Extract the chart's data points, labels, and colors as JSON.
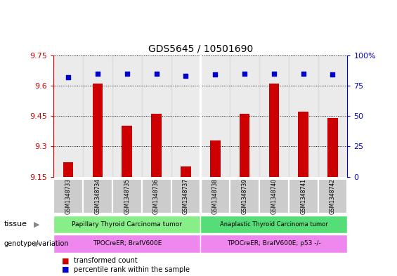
{
  "title": "GDS5645 / 10501690",
  "samples": [
    "GSM1348733",
    "GSM1348734",
    "GSM1348735",
    "GSM1348736",
    "GSM1348737",
    "GSM1348738",
    "GSM1348739",
    "GSM1348740",
    "GSM1348741",
    "GSM1348742"
  ],
  "bar_values": [
    9.22,
    9.61,
    9.4,
    9.46,
    9.2,
    9.33,
    9.46,
    9.61,
    9.47,
    9.44
  ],
  "dot_values": [
    82,
    85,
    85,
    85,
    83,
    84,
    85,
    85,
    85,
    84
  ],
  "bar_color": "#cc0000",
  "dot_color": "#0000cc",
  "ylim_left": [
    9.15,
    9.75
  ],
  "ylim_right": [
    0,
    100
  ],
  "yticks_left": [
    9.15,
    9.3,
    9.45,
    9.6,
    9.75
  ],
  "yticks_right": [
    0,
    25,
    50,
    75,
    100
  ],
  "ytick_labels_left": [
    "9.15",
    "9.3",
    "9.45",
    "9.6",
    "9.75"
  ],
  "ytick_labels_right": [
    "0",
    "25",
    "50",
    "75",
    "100%"
  ],
  "tissue_labels": [
    "Papillary Thyroid Carcinoma tumor",
    "Anaplastic Thyroid Carcinoma tumor"
  ],
  "tissue_color1": "#88ee88",
  "tissue_color2": "#55dd77",
  "genotype_labels": [
    "TPOCreER; BrafV600E",
    "TPOCreER; BrafV600E; p53 -/-"
  ],
  "genotype_color": "#ee88ee",
  "sample_box_color": "#cccccc",
  "group1_count": 5,
  "group2_count": 5,
  "bar_width": 0.35,
  "left_axis_color": "#cc0000",
  "right_axis_color": "#0000cc",
  "label_tissue": "tissue",
  "label_genotype": "genotype/variation",
  "legend_bar": "transformed count",
  "legend_dot": "percentile rank within the sample"
}
